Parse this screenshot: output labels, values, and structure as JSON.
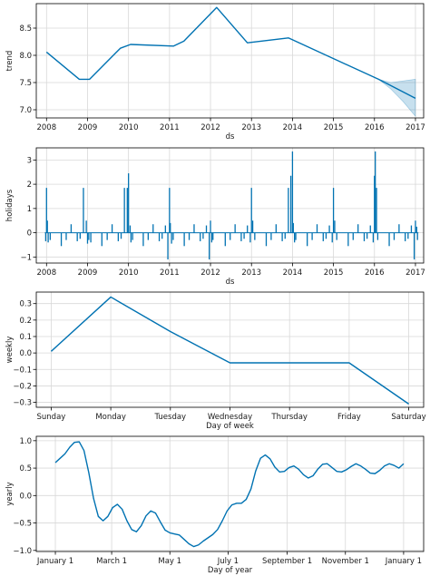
{
  "colors": {
    "line": "#0072B2",
    "band": "#0072B2",
    "grid": "#d8d8d8"
  },
  "chart_data": [
    {
      "id": "trend",
      "type": "line",
      "xlabel": "ds",
      "ylabel": "trend",
      "xlim": [
        2007.75,
        2017.2
      ],
      "ylim": [
        6.85,
        8.95
      ],
      "xticks": [
        2008,
        2009,
        2010,
        2011,
        2012,
        2013,
        2014,
        2015,
        2016,
        2017
      ],
      "xtick_labels": [
        "2008",
        "2009",
        "2010",
        "2011",
        "2012",
        "2013",
        "2014",
        "2015",
        "2016",
        "2017"
      ],
      "yticks": [
        7.0,
        7.5,
        8.0,
        8.5
      ],
      "ytick_labels": [
        "7.0",
        "7.5",
        "8.0",
        "8.5"
      ],
      "grid": true,
      "series": [
        {
          "x": [
            2008.0,
            2008.8,
            2009.05,
            2009.8,
            2010.05,
            2011.1,
            2011.35,
            2012.15,
            2012.9,
            2013.9,
            2016.1,
            2017.0
          ],
          "y": [
            8.06,
            7.56,
            7.56,
            8.13,
            8.2,
            8.17,
            8.26,
            8.88,
            8.23,
            8.32,
            7.56,
            7.21
          ]
        }
      ],
      "uncertainty": {
        "x": [
          2016.1,
          2016.4,
          2016.7,
          2017.0
        ],
        "lower": [
          7.56,
          7.38,
          7.15,
          6.88
        ],
        "upper": [
          7.56,
          7.5,
          7.53,
          7.56
        ]
      }
    },
    {
      "id": "holidays",
      "type": "bar",
      "xlabel": "ds",
      "ylabel": "holidays",
      "xlim": [
        2007.75,
        2017.2
      ],
      "ylim": [
        -1.25,
        3.5
      ],
      "xticks": [
        2008,
        2009,
        2010,
        2011,
        2012,
        2013,
        2014,
        2015,
        2016,
        2017
      ],
      "xtick_labels": [
        "2008",
        "2009",
        "2010",
        "2011",
        "2012",
        "2013",
        "2014",
        "2015",
        "2016",
        "2017"
      ],
      "yticks": [
        -1,
        0,
        1,
        2,
        3
      ],
      "ytick_labels": [
        "−1",
        "0",
        "1",
        "2",
        "3"
      ],
      "grid": true,
      "spikes": {
        "x": [
          2007.98,
          2008.0,
          2008.02,
          2008.04,
          2008.09,
          2008.36,
          2008.48,
          2008.6,
          2008.75,
          2008.82,
          2008.9,
          2008.97,
          2009.0,
          2009.03,
          2009.08,
          2009.35,
          2009.48,
          2009.6,
          2009.75,
          2009.82,
          2009.9,
          2009.97,
          2010.0,
          2010.04,
          2010.06,
          2010.1,
          2010.36,
          2010.48,
          2010.6,
          2010.75,
          2010.82,
          2010.9,
          2010.96,
          2011.0,
          2011.02,
          2011.05,
          2011.09,
          2011.36,
          2011.48,
          2011.6,
          2011.75,
          2011.82,
          2011.9,
          2011.97,
          2012.0,
          2012.03,
          2012.06,
          2012.36,
          2012.48,
          2012.6,
          2012.75,
          2012.82,
          2012.9,
          2012.97,
          2013.0,
          2013.03,
          2013.08,
          2013.36,
          2013.48,
          2013.6,
          2013.75,
          2013.82,
          2013.9,
          2013.96,
          2014.0,
          2014.02,
          2014.05,
          2014.08,
          2014.36,
          2014.48,
          2014.6,
          2014.75,
          2014.82,
          2014.9,
          2014.97,
          2015.0,
          2015.03,
          2015.08,
          2015.36,
          2015.48,
          2015.6,
          2015.75,
          2015.82,
          2015.9,
          2015.97,
          2016.0,
          2016.02,
          2016.05,
          2016.08,
          2016.36,
          2016.48,
          2016.6,
          2016.75,
          2016.82,
          2016.9,
          2016.97,
          2017.0,
          2017.03,
          2017.05
        ],
        "y": [
          -0.35,
          1.85,
          0.5,
          -0.4,
          -0.3,
          -0.55,
          -0.3,
          0.35,
          -0.35,
          -0.25,
          1.85,
          0.5,
          -0.45,
          -0.3,
          -0.4,
          -0.55,
          -0.3,
          0.35,
          -0.35,
          -0.25,
          1.85,
          1.85,
          2.45,
          0.3,
          -0.4,
          -0.3,
          -0.55,
          -0.3,
          0.35,
          -0.35,
          -0.25,
          0.3,
          -1.1,
          1.85,
          0.4,
          -0.45,
          -0.3,
          -0.55,
          -0.3,
          0.35,
          -0.35,
          -0.25,
          0.3,
          -1.1,
          0.5,
          -0.4,
          -0.3,
          -0.55,
          -0.3,
          0.35,
          -0.35,
          -0.25,
          0.3,
          -0.4,
          1.85,
          0.5,
          -0.3,
          -0.55,
          -0.3,
          0.35,
          -0.35,
          -0.25,
          1.85,
          2.35,
          3.35,
          0.4,
          -0.4,
          -0.3,
          -0.55,
          -0.3,
          0.35,
          -0.35,
          -0.25,
          0.3,
          -0.4,
          1.85,
          0.5,
          -0.3,
          -0.55,
          -0.3,
          0.35,
          -0.35,
          -0.25,
          0.3,
          -0.4,
          2.35,
          3.35,
          1.85,
          -0.3,
          -0.55,
          -0.3,
          0.35,
          -0.35,
          -0.25,
          0.3,
          -1.1,
          0.5,
          0.25,
          -0.3
        ]
      }
    },
    {
      "id": "weekly",
      "type": "line",
      "xlabel": "Day of week",
      "ylabel": "weekly",
      "xlim": [
        -0.25,
        6.25
      ],
      "ylim": [
        -0.33,
        0.37
      ],
      "xticks": [
        0,
        1,
        2,
        3,
        4,
        5,
        6
      ],
      "xtick_labels": [
        "Sunday",
        "Monday",
        "Tuesday",
        "Wednesday",
        "Thursday",
        "Friday",
        "Saturday"
      ],
      "yticks": [
        -0.3,
        -0.2,
        -0.1,
        0.0,
        0.1,
        0.2,
        0.3
      ],
      "ytick_labels": [
        "−0.3",
        "−0.2",
        "−0.1",
        "0.0",
        "0.1",
        "0.2",
        "0.3"
      ],
      "grid": true,
      "series": [
        {
          "x": [
            0,
            1,
            2,
            3,
            4,
            5,
            6
          ],
          "y": [
            0.01,
            0.34,
            0.13,
            -0.06,
            -0.06,
            -0.06,
            -0.31
          ]
        }
      ]
    },
    {
      "id": "yearly",
      "type": "line",
      "xlabel": "Day of year",
      "ylabel": "yearly",
      "xlim": [
        -20,
        386
      ],
      "ylim": [
        -1.02,
        1.08
      ],
      "xticks": [
        0,
        59,
        120,
        181,
        243,
        304,
        365
      ],
      "xtick_labels": [
        "January 1",
        "March 1",
        "May 1",
        "July 1",
        "September 1",
        "November 1",
        "January 1"
      ],
      "yticks": [
        -1.0,
        -0.5,
        0.0,
        0.5,
        1.0
      ],
      "ytick_labels": [
        "−1.0",
        "−0.5",
        "0.0",
        "0.5",
        "1.0"
      ],
      "grid": true,
      "series": [
        {
          "x": [
            0,
            5,
            10,
            15,
            20,
            25,
            30,
            35,
            40,
            45,
            50,
            55,
            60,
            65,
            70,
            75,
            80,
            85,
            90,
            95,
            100,
            105,
            110,
            115,
            120,
            125,
            130,
            135,
            140,
            145,
            150,
            155,
            160,
            165,
            170,
            175,
            180,
            185,
            190,
            195,
            200,
            205,
            210,
            215,
            220,
            225,
            230,
            235,
            240,
            245,
            250,
            255,
            260,
            265,
            270,
            275,
            280,
            285,
            290,
            295,
            300,
            305,
            310,
            315,
            320,
            325,
            330,
            335,
            340,
            345,
            350,
            355,
            360,
            365
          ],
          "y": [
            0.6,
            0.68,
            0.76,
            0.88,
            0.97,
            0.98,
            0.82,
            0.42,
            -0.05,
            -0.38,
            -0.46,
            -0.38,
            -0.22,
            -0.16,
            -0.25,
            -0.46,
            -0.62,
            -0.66,
            -0.55,
            -0.37,
            -0.28,
            -0.32,
            -0.48,
            -0.63,
            -0.68,
            -0.7,
            -0.72,
            -0.8,
            -0.88,
            -0.93,
            -0.9,
            -0.83,
            -0.77,
            -0.71,
            -0.62,
            -0.46,
            -0.28,
            -0.17,
            -0.14,
            -0.14,
            -0.07,
            0.12,
            0.45,
            0.68,
            0.74,
            0.67,
            0.52,
            0.43,
            0.44,
            0.51,
            0.54,
            0.48,
            0.38,
            0.32,
            0.36,
            0.48,
            0.57,
            0.58,
            0.51,
            0.44,
            0.43,
            0.47,
            0.53,
            0.58,
            0.54,
            0.48,
            0.41,
            0.4,
            0.46,
            0.54,
            0.58,
            0.55,
            0.5,
            0.58
          ]
        }
      ]
    }
  ]
}
